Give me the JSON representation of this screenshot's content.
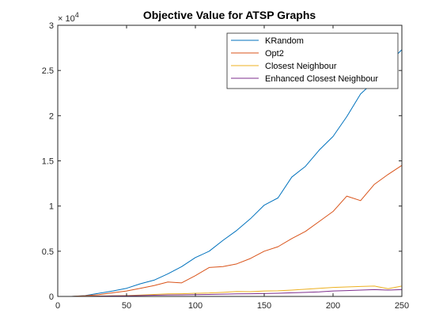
{
  "chart_data": {
    "type": "line",
    "title": "Objective Value for ATSP Graphs",
    "xlabel": "",
    "ylabel": "",
    "xlim": [
      0,
      250
    ],
    "ylim": [
      0,
      30000
    ],
    "x_ticks": [
      0,
      50,
      100,
      150,
      200,
      250
    ],
    "y_ticks": [
      0,
      5000,
      10000,
      15000,
      20000,
      25000,
      30000
    ],
    "x_tick_labels": [
      "0",
      "50",
      "100",
      "150",
      "200",
      "250"
    ],
    "y_tick_labels": [
      "0",
      "0.5",
      "1",
      "1.5",
      "2",
      "2.5",
      "3"
    ],
    "y_exponent_base": "× 10",
    "y_exponent_power": "4",
    "grid": false,
    "legend_position": "top-right",
    "x": [
      10,
      20,
      30,
      40,
      50,
      60,
      70,
      80,
      90,
      100,
      110,
      120,
      130,
      140,
      150,
      160,
      170,
      180,
      190,
      200,
      210,
      220,
      230,
      240,
      250
    ],
    "series": [
      {
        "name": "KRandom",
        "color": "#0072BD",
        "values": [
          0,
          100,
          350,
          600,
          900,
          1400,
          1800,
          2500,
          3300,
          4300,
          5000,
          6200,
          7300,
          8600,
          10100,
          10900,
          13200,
          14400,
          16200,
          17700,
          19900,
          22400,
          23800,
          25800,
          27300
        ]
      },
      {
        "name": "Opt2",
        "color": "#D95319",
        "values": [
          0,
          80,
          200,
          400,
          600,
          900,
          1200,
          1600,
          1500,
          2300,
          3200,
          3300,
          3600,
          4200,
          5000,
          5500,
          6400,
          7200,
          8300,
          9400,
          11100,
          10600,
          12400,
          13500,
          14500
        ]
      },
      {
        "name": "Closest Neighbour",
        "color": "#EDB120",
        "values": [
          0,
          20,
          50,
          80,
          100,
          150,
          220,
          280,
          300,
          350,
          380,
          450,
          550,
          520,
          600,
          620,
          700,
          800,
          900,
          1000,
          1050,
          1100,
          1150,
          850,
          1150
        ]
      },
      {
        "name": "Enhanced Closest Neighbour",
        "color": "#7E2F8E",
        "values": [
          0,
          10,
          30,
          50,
          70,
          100,
          130,
          160,
          180,
          200,
          220,
          250,
          280,
          300,
          320,
          350,
          400,
          450,
          500,
          600,
          650,
          700,
          750,
          700,
          750
        ]
      }
    ]
  }
}
